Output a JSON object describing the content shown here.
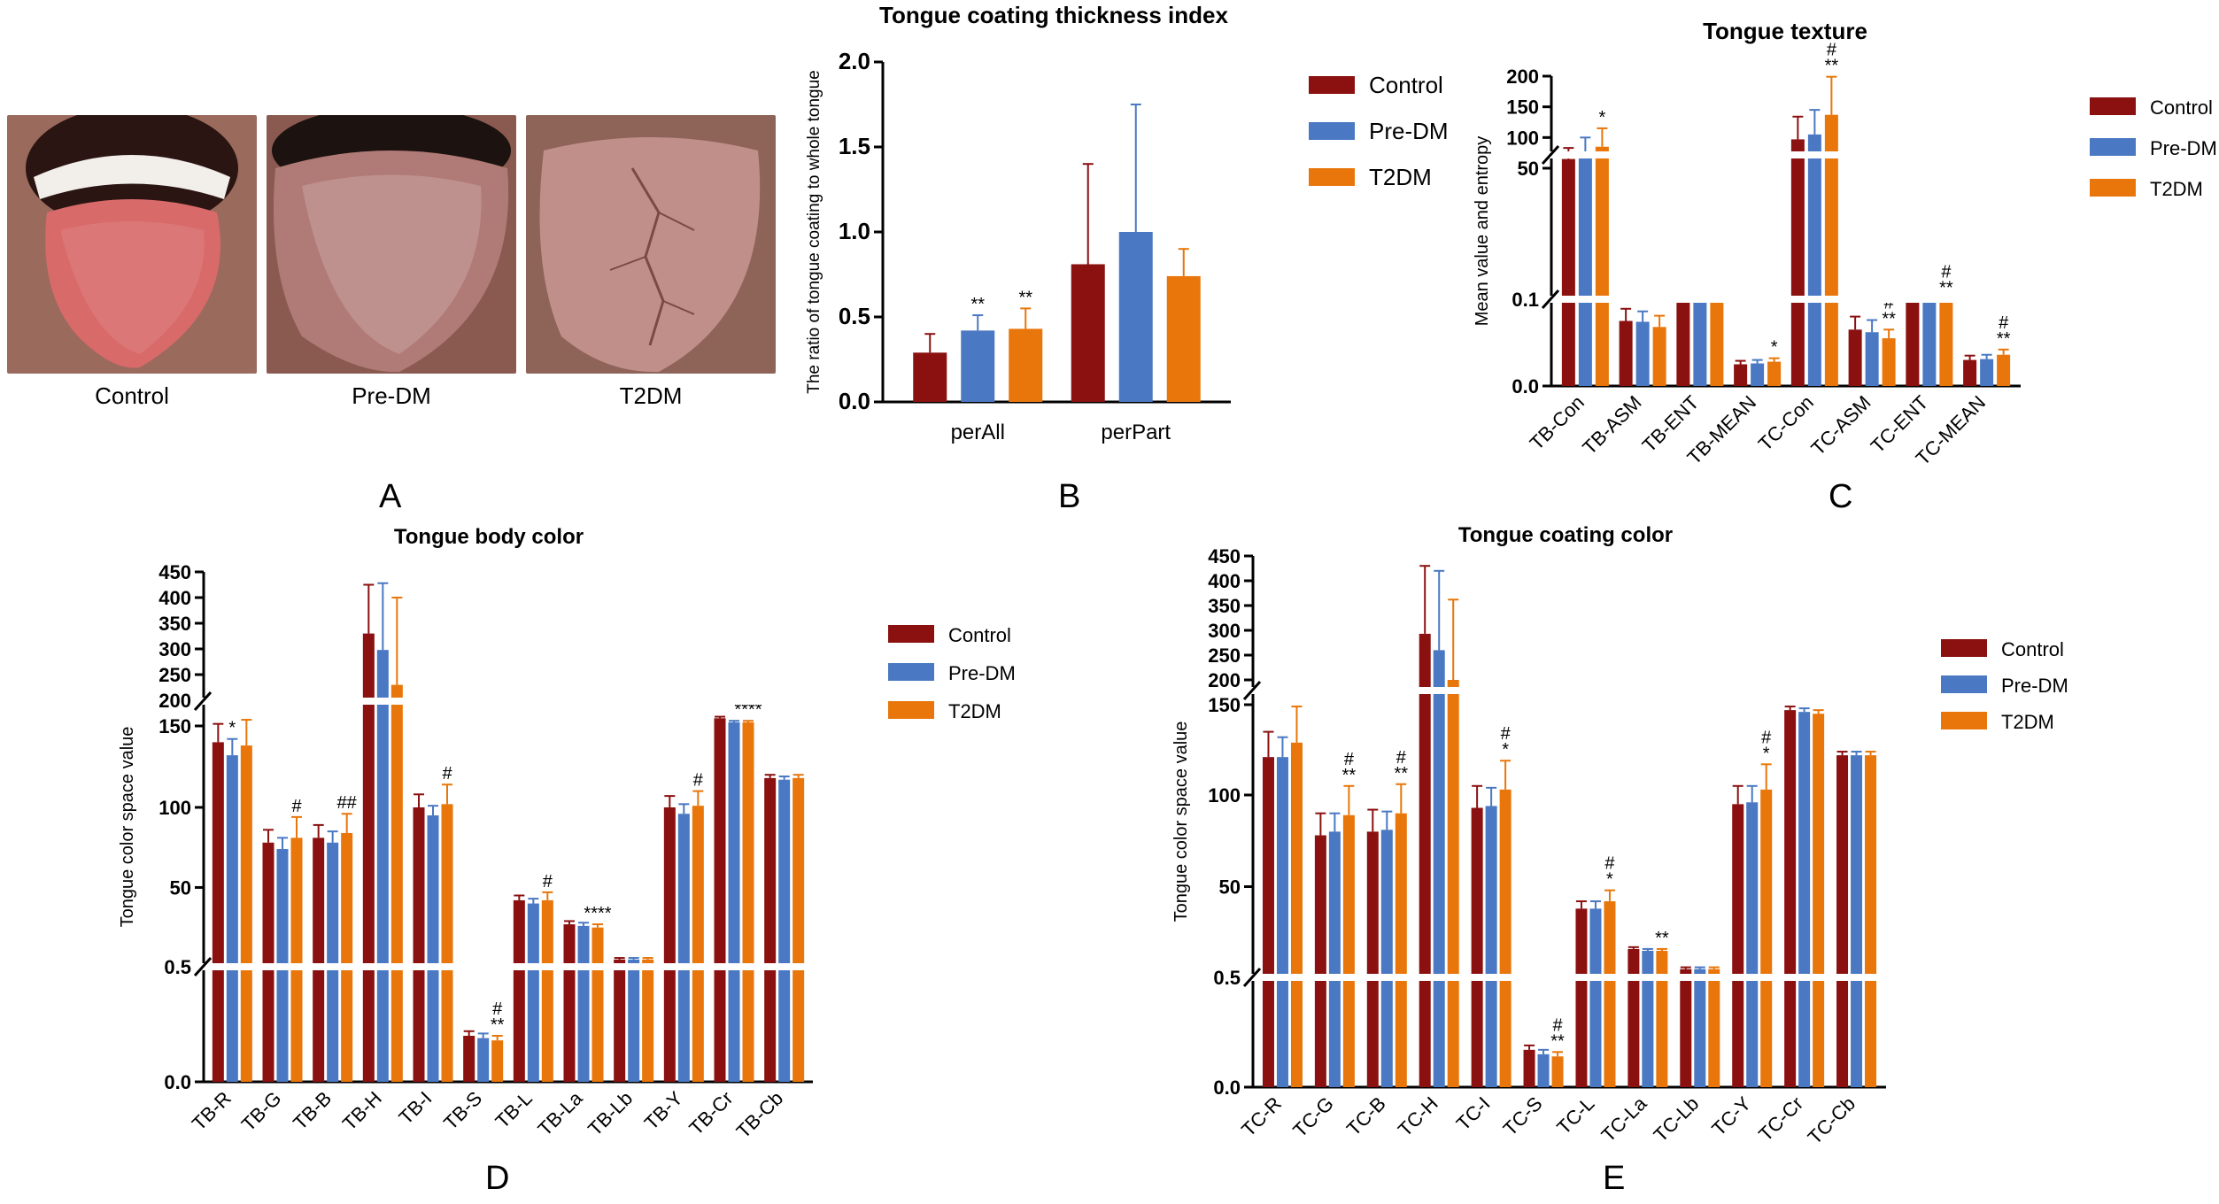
{
  "colors": {
    "control": "#8B1010",
    "predm": "#4A78C2",
    "t2dm": "#E8760A"
  },
  "panel_labels": {
    "a": "A",
    "b": "B",
    "c": "C",
    "d": "D",
    "e": "E"
  },
  "photos": [
    {
      "caption": "Control"
    },
    {
      "caption": "Pre-DM"
    },
    {
      "caption": "T2DM"
    }
  ],
  "chart_data": [
    {
      "id": "B",
      "type": "bar",
      "title": "Tongue coating thickness index",
      "ylabel": "The ratio of tongue coating to whole tongue",
      "xlabel": "",
      "ylim": [
        0,
        2.0
      ],
      "yticks": [
        "0.0",
        "0.5",
        "1.0",
        "1.5",
        "2.0"
      ],
      "legend": [
        "Control",
        "Pre-DM",
        "T2DM"
      ],
      "categories": [
        "perAll",
        "perPart"
      ],
      "series": [
        {
          "name": "Control",
          "values": [
            0.29,
            0.81
          ],
          "errors": [
            0.11,
            0.59
          ],
          "annotations": [
            "",
            ""
          ]
        },
        {
          "name": "Pre-DM",
          "values": [
            0.42,
            1.0
          ],
          "errors": [
            0.09,
            0.75
          ],
          "annotations": [
            "**",
            ""
          ]
        },
        {
          "name": "T2DM",
          "values": [
            0.43,
            0.74
          ],
          "errors": [
            0.12,
            0.16
          ],
          "annotations": [
            "**",
            ""
          ]
        }
      ]
    },
    {
      "id": "C",
      "type": "bar",
      "title": "Tongue texture",
      "ylabel": "Mean value and entropy",
      "xlabel": "",
      "yticks": [
        "0.0",
        "0.1",
        "50",
        "100",
        "150",
        "200"
      ],
      "legend": [
        "Control",
        "Pre-DM",
        "T2DM"
      ],
      "categories": [
        "TB-Con",
        "TB-ASM",
        "TB-ENT",
        "TB-MEAN",
        "TC-Con",
        "TC-ASM",
        "TC-ENT",
        "TC-MEAN"
      ],
      "series": [
        {
          "name": "Control",
          "values": [
            65,
            0.075,
            0.2,
            0.025,
            97,
            0.065,
            0.21,
            0.03
          ],
          "errors": [
            18,
            0.014,
            0.006,
            0.004,
            37,
            0.015,
            0.008,
            0.005
          ],
          "annotations": [
            "",
            "",
            "",
            "",
            "",
            "",
            "",
            ""
          ]
        },
        {
          "name": "Pre-DM",
          "values": [
            75,
            0.074,
            0.2,
            0.026,
            105,
            0.062,
            0.21,
            0.031
          ],
          "errors": [
            25,
            0.012,
            0.006,
            0.004,
            40,
            0.014,
            0.008,
            0.005
          ],
          "annotations": [
            "",
            "",
            "",
            "",
            "",
            "",
            "",
            ""
          ]
        },
        {
          "name": "T2DM",
          "values": [
            85,
            0.068,
            0.202,
            0.028,
            137,
            0.055,
            0.22,
            0.036
          ],
          "errors": [
            30,
            0.013,
            0.006,
            0.004,
            62,
            0.01,
            0.006,
            0.006
          ],
          "annotations": [
            "*",
            "",
            "",
            "*",
            "#\n**",
            "#\n**",
            "#\n**",
            "#\n**"
          ]
        }
      ]
    },
    {
      "id": "D",
      "type": "bar",
      "title": "Tongue body color",
      "ylabel": "Tongue color space value",
      "xlabel": "",
      "yticks": [
        "0.0",
        "0.5",
        "50",
        "100",
        "150",
        "200",
        "250",
        "300",
        "350",
        "400",
        "450"
      ],
      "legend": [
        "Control",
        "Pre-DM",
        "T2DM"
      ],
      "categories": [
        "TB-R",
        "TB-G",
        "TB-B",
        "TB-H",
        "TB-I",
        "TB-S",
        "TB-L",
        "TB-La",
        "TB-Lb",
        "TB-Y",
        "TB-Cr",
        "TB-Cb"
      ],
      "series": [
        {
          "name": "Control",
          "values": [
            140,
            78,
            81,
            330,
            100,
            0.2,
            42,
            27,
            5,
            100,
            165,
            118
          ],
          "errors": [
            14,
            8,
            8,
            95,
            8,
            0.02,
            3,
            2,
            1,
            7,
            3,
            2
          ],
          "annotations": [
            "",
            "",
            "",
            "",
            "",
            "",
            "",
            "",
            "",
            "",
            "",
            ""
          ]
        },
        {
          "name": "Pre-DM",
          "values": [
            132,
            74,
            78,
            298,
            95,
            0.19,
            40,
            26,
            5,
            96,
            157,
            117
          ],
          "errors": [
            10,
            7,
            7,
            130,
            6,
            0.02,
            3,
            2,
            1,
            6,
            3,
            2
          ],
          "annotations": [
            "*",
            "",
            "",
            "",
            "",
            "",
            "",
            "",
            "",
            "",
            "",
            ""
          ]
        },
        {
          "name": "T2DM",
          "values": [
            138,
            81,
            84,
            230,
            102,
            0.18,
            42,
            25,
            5,
            101,
            157,
            118
          ],
          "errors": [
            24,
            13,
            12,
            170,
            12,
            0.02,
            5,
            2,
            1,
            9,
            3,
            2
          ],
          "annotations": [
            "",
            "#",
            "##",
            "",
            "#",
            "#\n**",
            "#",
            "****",
            "",
            "#",
            "****",
            ""
          ]
        }
      ]
    },
    {
      "id": "E",
      "type": "bar",
      "title": "Tongue coating color",
      "ylabel": "Tongue color space value",
      "xlabel": "",
      "yticks": [
        "0.0",
        "0.5",
        "50",
        "100",
        "150",
        "200",
        "250",
        "300",
        "350",
        "400",
        "450"
      ],
      "legend": [
        "Control",
        "Pre-DM",
        "T2DM"
      ],
      "categories": [
        "TC-R",
        "TC-G",
        "TC-B",
        "TC-H",
        "TC-I",
        "TC-S",
        "TC-L",
        "TC-La",
        "TC-Lb",
        "TC-Y",
        "TC-Cr",
        "TC-Cb"
      ],
      "series": [
        {
          "name": "Control",
          "values": [
            121,
            78,
            80,
            293,
            93,
            0.17,
            38,
            16,
            5,
            95,
            147,
            122
          ],
          "errors": [
            14,
            12,
            12,
            137,
            12,
            0.02,
            4,
            1,
            1,
            10,
            2,
            2
          ],
          "annotations": [
            "",
            "",
            "",
            "",
            "",
            "",
            "",
            "",
            "",
            "",
            "",
            ""
          ]
        },
        {
          "name": "Pre-DM",
          "values": [
            121,
            80,
            81,
            260,
            94,
            0.15,
            38,
            15,
            5,
            96,
            146,
            122
          ],
          "errors": [
            11,
            10,
            10,
            160,
            10,
            0.02,
            4,
            1,
            1,
            9,
            2,
            2
          ],
          "annotations": [
            "",
            "",
            "",
            "",
            "",
            "",
            "",
            "",
            "",
            "",
            "",
            ""
          ]
        },
        {
          "name": "T2DM",
          "values": [
            129,
            89,
            90,
            200,
            103,
            0.14,
            42,
            15,
            5,
            103,
            145,
            122
          ],
          "errors": [
            20,
            16,
            16,
            162,
            16,
            0.02,
            6,
            1,
            1,
            14,
            2,
            2
          ],
          "annotations": [
            "",
            "#\n**",
            "#\n**",
            "",
            "#\n*",
            "#\n**",
            "#\n*",
            "**",
            "",
            "#\n*",
            "",
            ""
          ]
        }
      ]
    }
  ]
}
